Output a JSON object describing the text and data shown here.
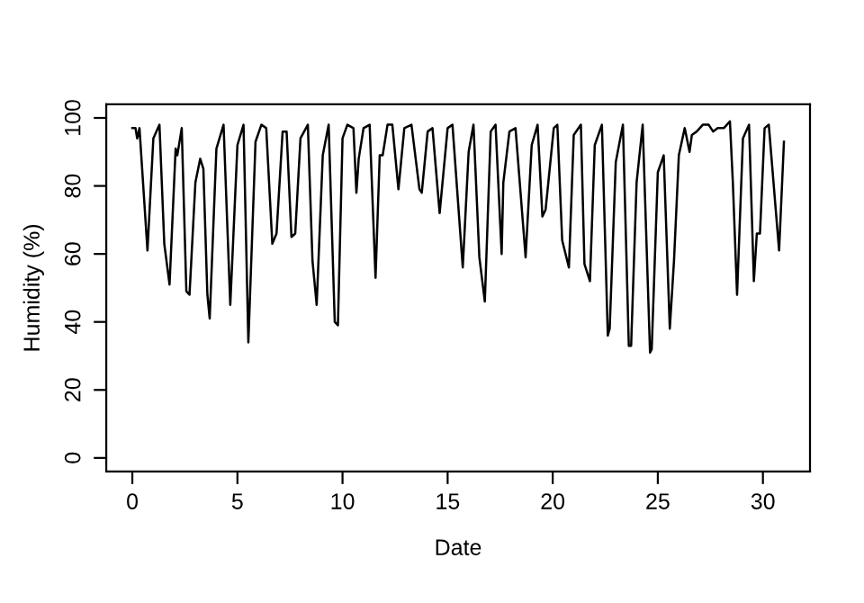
{
  "chart_data": {
    "type": "line",
    "xlabel": "Date",
    "ylabel": "Humidity (%)",
    "xlim": [
      -1.24,
      32.24
    ],
    "ylim": [
      -4,
      104
    ],
    "xticks": [
      0,
      5,
      10,
      15,
      20,
      25,
      30
    ],
    "yticks": [
      0,
      20,
      40,
      60,
      80,
      100
    ],
    "marker": "none",
    "line_style": "solid",
    "series": [
      {
        "color": "#000000",
        "x": [
          0,
          0.15,
          0.23,
          0.34,
          0.72,
          1.0,
          1.29,
          1.52,
          1.77,
          2.06,
          2.14,
          2.35,
          2.57,
          2.72,
          3.0,
          3.23,
          3.38,
          3.57,
          3.68,
          4.0,
          4.34,
          4.66,
          5.0,
          5.29,
          5.52,
          5.86,
          6.14,
          6.37,
          6.66,
          6.86,
          7.15,
          7.34,
          7.57,
          7.75,
          8.0,
          8.35,
          8.57,
          8.77,
          9.06,
          9.34,
          9.63,
          9.78,
          10.0,
          10.23,
          10.52,
          10.66,
          10.77,
          11.0,
          11.29,
          11.57,
          11.77,
          11.91,
          12.14,
          12.37,
          12.66,
          12.94,
          13.28,
          13.66,
          13.77,
          14.05,
          14.28,
          14.62,
          15.0,
          15.23,
          15.72,
          16.0,
          16.23,
          16.51,
          16.77,
          17.05,
          17.28,
          17.57,
          17.65,
          17.94,
          18.23,
          18.71,
          19.0,
          19.28,
          19.51,
          19.66,
          20.05,
          20.22,
          20.45,
          20.77,
          21.0,
          21.34,
          21.51,
          21.77,
          22.0,
          22.34,
          22.62,
          22.71,
          23.0,
          23.34,
          23.62,
          23.73,
          23.99,
          24.28,
          24.63,
          24.71,
          25.0,
          25.28,
          25.57,
          25.77,
          26.0,
          26.28,
          26.51,
          26.62,
          26.85,
          27.14,
          27.42,
          27.63,
          27.85,
          28.14,
          28.43,
          28.57,
          28.77,
          29.05,
          29.34,
          29.57,
          29.71,
          29.86,
          30.08,
          30.28,
          30.57,
          30.77,
          31.0
        ],
        "values": [
          97,
          97,
          94,
          97,
          61,
          94,
          98,
          63,
          51,
          91,
          89,
          97,
          49,
          48,
          81,
          88,
          85,
          48,
          41,
          91,
          98,
          45,
          92,
          98,
          34,
          93,
          98,
          97,
          63,
          66,
          96,
          96,
          65,
          66,
          94,
          98,
          58,
          45,
          89,
          98,
          40,
          39,
          94,
          98,
          97,
          78,
          88,
          97,
          98,
          53,
          89,
          89,
          98,
          98,
          79,
          97,
          98,
          79,
          78,
          96,
          97,
          72,
          97,
          98,
          56,
          90,
          98,
          59,
          46,
          96,
          98,
          60,
          81,
          96,
          97,
          59,
          92,
          98,
          71,
          73,
          97,
          98,
          64,
          56,
          95,
          98,
          57,
          52,
          92,
          98,
          36,
          38,
          87,
          98,
          33,
          33,
          81,
          98,
          31,
          32,
          84,
          89,
          38,
          58,
          89,
          97,
          90,
          95,
          96,
          98,
          98,
          96,
          97,
          97,
          99,
          81,
          48,
          94,
          98,
          52,
          66,
          66,
          97,
          98,
          76,
          61,
          93
        ]
      }
    ]
  }
}
